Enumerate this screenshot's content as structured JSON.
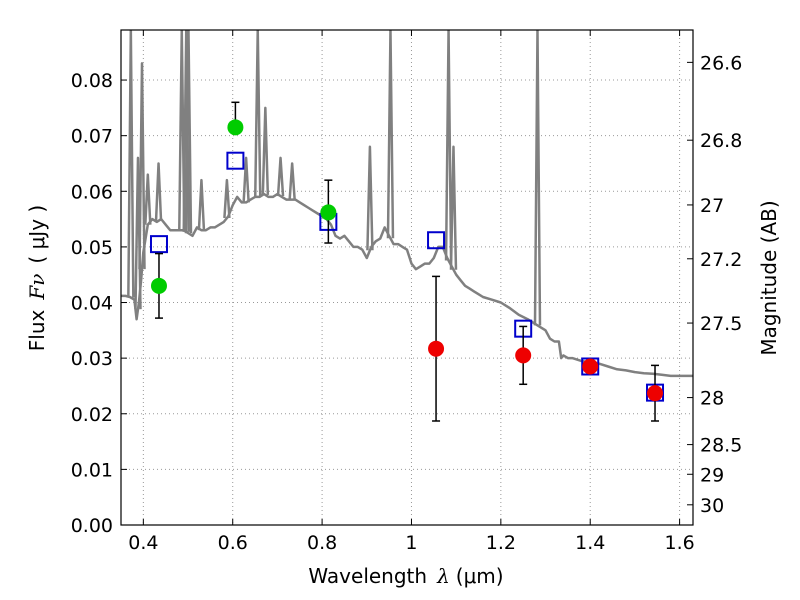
{
  "chart_data": {
    "type": "scatter",
    "xlabel": {
      "prefix": "Wavelength",
      "symbol": "λ",
      "unit": "(μm)"
    },
    "ylabel": {
      "prefix": "Flux",
      "symbol": "Fν",
      "unit": "( μJy )"
    },
    "y2label": "Magnitude (AB)",
    "xlim": [
      0.35,
      1.63
    ],
    "ylim": [
      0.0,
      0.089
    ],
    "grid": true,
    "x_ticks": [
      {
        "value": 0.4,
        "label": "0.4"
      },
      {
        "value": 0.6,
        "label": "0.6"
      },
      {
        "value": 0.8,
        "label": "0.8"
      },
      {
        "value": 1.0,
        "label": "1"
      },
      {
        "value": 1.2,
        "label": "1.2"
      },
      {
        "value": 1.4,
        "label": "1.4"
      },
      {
        "value": 1.6,
        "label": "1.6"
      }
    ],
    "y_ticks": [
      {
        "value": 0.0,
        "label": "0.00"
      },
      {
        "value": 0.01,
        "label": "0.01"
      },
      {
        "value": 0.02,
        "label": "0.02"
      },
      {
        "value": 0.03,
        "label": "0.03"
      },
      {
        "value": 0.04,
        "label": "0.04"
      },
      {
        "value": 0.05,
        "label": "0.05"
      },
      {
        "value": 0.06,
        "label": "0.06"
      },
      {
        "value": 0.07,
        "label": "0.07"
      },
      {
        "value": 0.08,
        "label": "0.08"
      }
    ],
    "y2_ticks": [
      {
        "value": 26.6,
        "label": "26.6"
      },
      {
        "value": 26.8,
        "label": "26.8"
      },
      {
        "value": 27.0,
        "label": "27"
      },
      {
        "value": 27.2,
        "label": "27.2"
      },
      {
        "value": 27.5,
        "label": "27.5"
      },
      {
        "value": 28.0,
        "label": "28"
      },
      {
        "value": 28.5,
        "label": "28.5"
      },
      {
        "value": 29.0,
        "label": "29"
      },
      {
        "value": 30.0,
        "label": "30"
      }
    ],
    "series": [
      {
        "kind": "model_spectrum",
        "color": "#808080",
        "x": [
          0.35,
          0.36,
          0.37,
          0.38,
          0.385,
          0.39,
          0.395,
          0.4,
          0.41,
          0.42,
          0.43,
          0.44,
          0.45,
          0.46,
          0.47,
          0.48,
          0.49,
          0.5,
          0.51,
          0.52,
          0.53,
          0.54,
          0.55,
          0.56,
          0.57,
          0.58,
          0.59,
          0.6,
          0.61,
          0.62,
          0.63,
          0.64,
          0.65,
          0.66,
          0.67,
          0.68,
          0.69,
          0.7,
          0.71,
          0.72,
          0.73,
          0.74,
          0.75,
          0.76,
          0.77,
          0.78,
          0.79,
          0.8,
          0.81,
          0.82,
          0.83,
          0.84,
          0.85,
          0.86,
          0.87,
          0.88,
          0.89,
          0.9,
          0.91,
          0.92,
          0.93,
          0.94,
          0.95,
          0.96,
          0.97,
          0.98,
          0.99,
          1.0,
          1.01,
          1.02,
          1.03,
          1.04,
          1.05,
          1.06,
          1.07,
          1.08,
          1.09,
          1.1,
          1.11,
          1.12,
          1.13,
          1.14,
          1.15,
          1.16,
          1.18,
          1.2,
          1.22,
          1.24,
          1.26,
          1.28,
          1.3,
          1.31,
          1.32,
          1.325,
          1.33,
          1.335,
          1.34,
          1.35,
          1.36,
          1.38,
          1.4,
          1.42,
          1.44,
          1.46,
          1.48,
          1.5,
          1.52,
          1.54,
          1.56,
          1.58,
          1.6,
          1.63
        ],
        "y": [
          0.0412,
          0.0412,
          0.041,
          0.0405,
          0.037,
          0.04,
          0.044,
          0.049,
          0.054,
          0.055,
          0.0545,
          0.055,
          0.054,
          0.053,
          0.053,
          0.053,
          0.053,
          0.0525,
          0.052,
          0.0535,
          0.053,
          0.053,
          0.0535,
          0.0535,
          0.054,
          0.0545,
          0.0555,
          0.0575,
          0.059,
          0.058,
          0.058,
          0.0585,
          0.059,
          0.059,
          0.0595,
          0.059,
          0.059,
          0.0595,
          0.059,
          0.0585,
          0.0585,
          0.0585,
          0.058,
          0.0575,
          0.057,
          0.0565,
          0.056,
          0.0555,
          0.055,
          0.054,
          0.052,
          0.0515,
          0.052,
          0.051,
          0.05,
          0.05,
          0.0495,
          0.048,
          0.05,
          0.051,
          0.0515,
          0.0535,
          0.052,
          0.0505,
          0.0505,
          0.05,
          0.0495,
          0.047,
          0.046,
          0.0465,
          0.047,
          0.047,
          0.048,
          0.05,
          0.05,
          0.048,
          0.0465,
          0.045,
          0.044,
          0.043,
          0.0425,
          0.042,
          0.0415,
          0.041,
          0.0405,
          0.04,
          0.039,
          0.0378,
          0.037,
          0.036,
          0.035,
          0.0335,
          0.033,
          0.033,
          0.033,
          0.03,
          0.0305,
          0.03,
          0.03,
          0.0295,
          0.0292,
          0.029,
          0.0285,
          0.028,
          0.0278,
          0.0275,
          0.0273,
          0.0272,
          0.027,
          0.0268,
          0.0268,
          0.0268
        ],
        "emission_lines": [
          {
            "x": 0.372,
            "peak": 0.089
          },
          {
            "x": 0.388,
            "peak": 0.066
          },
          {
            "x": 0.397,
            "peak": 0.083
          },
          {
            "x": 0.41,
            "peak": 0.063
          },
          {
            "x": 0.434,
            "peak": 0.065
          },
          {
            "x": 0.486,
            "peak": 0.089
          },
          {
            "x": 0.496,
            "peak": 0.089
          },
          {
            "x": 0.501,
            "peak": 0.089
          },
          {
            "x": 0.53,
            "peak": 0.062
          },
          {
            "x": 0.587,
            "peak": 0.062
          },
          {
            "x": 0.63,
            "peak": 0.066
          },
          {
            "x": 0.656,
            "peak": 0.089
          },
          {
            "x": 0.673,
            "peak": 0.075
          },
          {
            "x": 0.707,
            "peak": 0.066
          },
          {
            "x": 0.733,
            "peak": 0.065
          },
          {
            "x": 0.907,
            "peak": 0.068
          },
          {
            "x": 0.953,
            "peak": 0.089
          },
          {
            "x": 1.083,
            "peak": 0.089
          },
          {
            "x": 1.094,
            "peak": 0.068
          },
          {
            "x": 1.282,
            "peak": 0.089
          }
        ]
      },
      {
        "kind": "model_photometry",
        "marker": "open-square",
        "color": "#0000cc",
        "x": [
          0.435,
          0.606,
          0.814,
          1.055,
          1.25,
          1.4,
          1.545
        ],
        "y": [
          0.0505,
          0.0655,
          0.0545,
          0.0512,
          0.0353,
          0.0285,
          0.0238
        ]
      },
      {
        "kind": "observed",
        "marker": "filled-circle",
        "color": "#00cc00",
        "x": [
          0.435,
          0.606,
          0.814
        ],
        "y": [
          0.043,
          0.0715,
          0.0562
        ],
        "err_low": [
          0.0058,
          0.0,
          0.0055
        ],
        "err_high": [
          0.0058,
          0.0045,
          0.0058
        ]
      },
      {
        "kind": "observed",
        "marker": "filled-circle",
        "color": "#ee0000",
        "x": [
          1.055,
          1.25,
          1.4,
          1.545
        ],
        "y": [
          0.0317,
          0.0305,
          0.0285,
          0.0237
        ],
        "err_low": [
          0.013,
          0.0052,
          0.0,
          0.005
        ],
        "err_high": [
          0.013,
          0.0052,
          0.0,
          0.005
        ]
      }
    ]
  }
}
